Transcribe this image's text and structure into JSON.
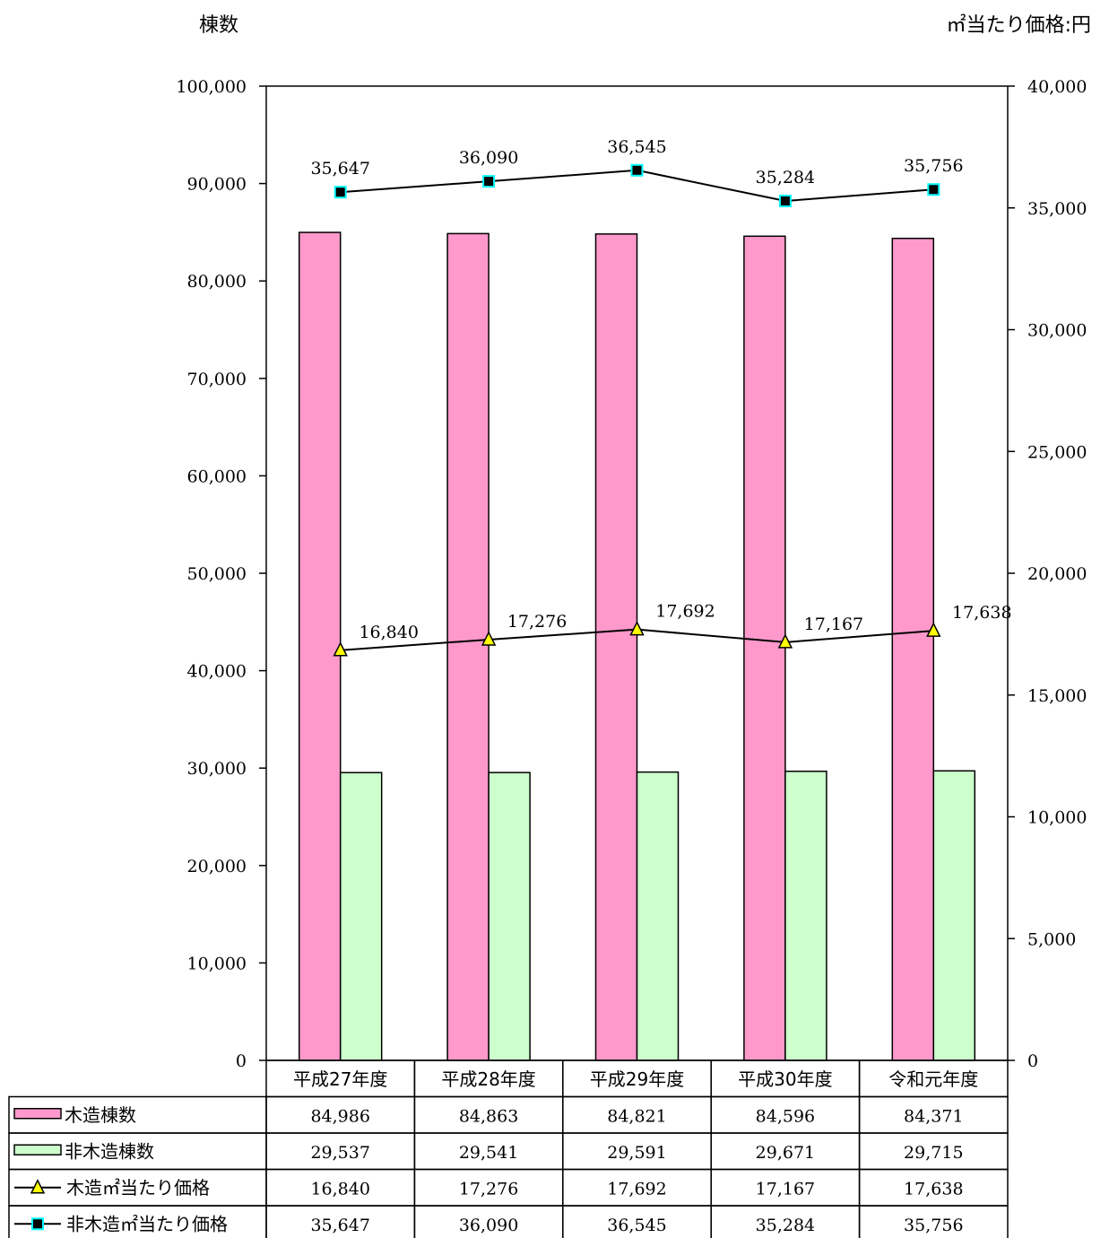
{
  "chart_data": {
    "type": "bar",
    "left_axis_title": "棟数",
    "right_axis_title": "㎡当たり価格:円",
    "categories": [
      "平成27年度",
      "平成28年度",
      "平成29年度",
      "平成30年度",
      "令和元年度"
    ],
    "y_left": {
      "min": 0,
      "max": 100000,
      "step": 10000,
      "tick_labels": [
        "0",
        "10,000",
        "20,000",
        "30,000",
        "40,000",
        "50,000",
        "60,000",
        "70,000",
        "80,000",
        "90,000",
        "100,000"
      ]
    },
    "y_right": {
      "min": 0,
      "max": 40000,
      "step": 5000,
      "tick_labels": [
        "0",
        "5,000",
        "10,000",
        "15,000",
        "20,000",
        "25,000",
        "30,000",
        "35,000",
        "40,000"
      ]
    },
    "grid": false,
    "legend": "data-table-below",
    "series": [
      {
        "name": "木造棟数",
        "kind": "bar",
        "axis": "left",
        "color": "#ff99cc",
        "values": [
          84986,
          84863,
          84821,
          84596,
          84371
        ],
        "display": [
          "84,986",
          "84,863",
          "84,821",
          "84,596",
          "84,371"
        ]
      },
      {
        "name": "非木造棟数",
        "kind": "bar",
        "axis": "left",
        "color": "#ccffcc",
        "values": [
          29537,
          29541,
          29591,
          29671,
          29715
        ],
        "display": [
          "29,537",
          "29,541",
          "29,591",
          "29,671",
          "29,715"
        ]
      },
      {
        "name": "木造㎡当たり価格",
        "kind": "line",
        "axis": "right",
        "color": "#000000",
        "marker": "triangle",
        "marker_color": "#ffff00",
        "values": [
          16840,
          17276,
          17692,
          17167,
          17638
        ],
        "display": [
          "16,840",
          "17,276",
          "17,692",
          "17,167",
          "17,638"
        ]
      },
      {
        "name": "非木造㎡当たり価格",
        "kind": "line",
        "axis": "right",
        "color": "#000000",
        "marker": "square",
        "marker_color": "#000000",
        "marker_edge": "#00ffff",
        "values": [
          35647,
          36090,
          36545,
          35284,
          35756
        ],
        "display": [
          "35,647",
          "36,090",
          "36,545",
          "35,284",
          "35,756"
        ]
      }
    ]
  }
}
